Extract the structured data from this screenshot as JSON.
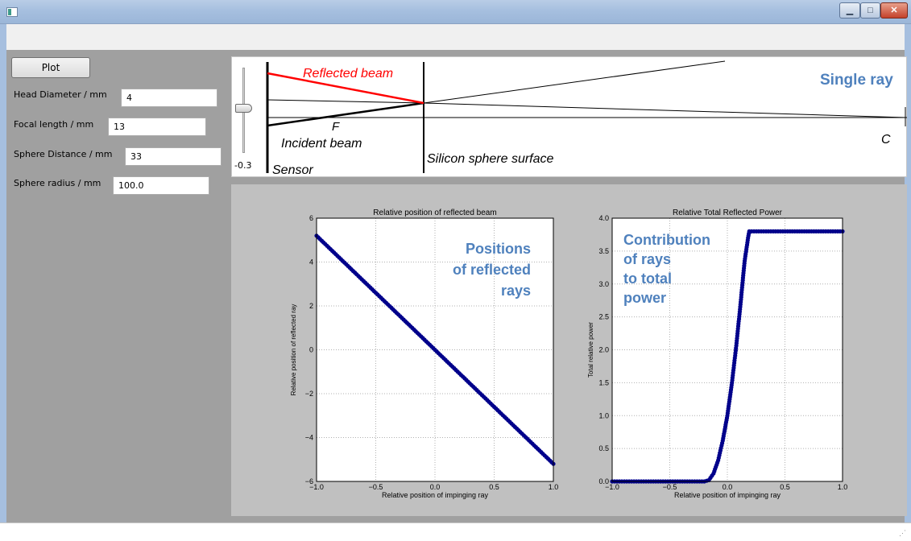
{
  "controls": {
    "plot_label": "Plot",
    "fields": [
      {
        "label": "Head Diameter / mm",
        "value": "4"
      },
      {
        "label": "Focal length / mm",
        "value": "13"
      },
      {
        "label": "Sphere Distance / mm",
        "value": "33"
      },
      {
        "label": "Sphere radius / mm",
        "value": "100.0"
      }
    ],
    "slider_value": "-0.3"
  },
  "ray_diagram": {
    "reflected_label": "Reflected beam",
    "incident_label": "Incident beam",
    "focus_label": "F",
    "center_label": "C",
    "sensor_label": "Sensor",
    "surface_label": "Silicon sphere surface",
    "overlay_title": "Single ray",
    "colors": {
      "reflected": "#ff0000",
      "overlay": "#4f81bd"
    }
  },
  "plots": {
    "left_overlay": [
      "Positions",
      "of reflected",
      "rays"
    ],
    "right_overlay": [
      "Contribution",
      "of rays",
      "to total",
      "power"
    ]
  },
  "chart_data": [
    {
      "type": "line",
      "title": "Relative position of reflected beam",
      "xlabel": "Relative position of impinging ray",
      "ylabel": "Relative position of reflected ray",
      "xlim": [
        -1.0,
        1.0
      ],
      "ylim": [
        -6,
        6
      ],
      "xticks": [
        "−1.0",
        "−0.5",
        "0.0",
        "0.5",
        "1.0"
      ],
      "yticks": [
        "−6",
        "−4",
        "−2",
        "0",
        "2",
        "4",
        "6"
      ],
      "grid": true,
      "marker_color": "#00008b",
      "series": [
        {
          "x": [
            -1.0,
            1.0
          ],
          "y": [
            5.2,
            -5.2
          ]
        }
      ]
    },
    {
      "type": "line",
      "title": "Relative Total Reflected Power",
      "xlabel": "Relative position of impinging ray",
      "ylabel": "Total relative power",
      "xlim": [
        -1.0,
        1.0
      ],
      "ylim": [
        0.0,
        4.0
      ],
      "xticks": [
        "−1.0",
        "−0.5",
        "0.0",
        "0.5",
        "1.0"
      ],
      "yticks": [
        "0.0",
        "0.5",
        "1.0",
        "1.5",
        "2.0",
        "2.5",
        "3.0",
        "3.5",
        "4.0"
      ],
      "grid": true,
      "marker_color": "#00008b",
      "series": [
        {
          "x": [
            -1.0,
            -0.2,
            -0.16,
            -0.12,
            -0.08,
            -0.04,
            0.0,
            0.04,
            0.08,
            0.12,
            0.15,
            0.18,
            0.19,
            1.0
          ],
          "y": [
            0.0,
            0.0,
            0.02,
            0.12,
            0.32,
            0.62,
            1.0,
            1.5,
            2.1,
            2.8,
            3.35,
            3.7,
            3.8,
            3.8
          ]
        }
      ]
    }
  ]
}
